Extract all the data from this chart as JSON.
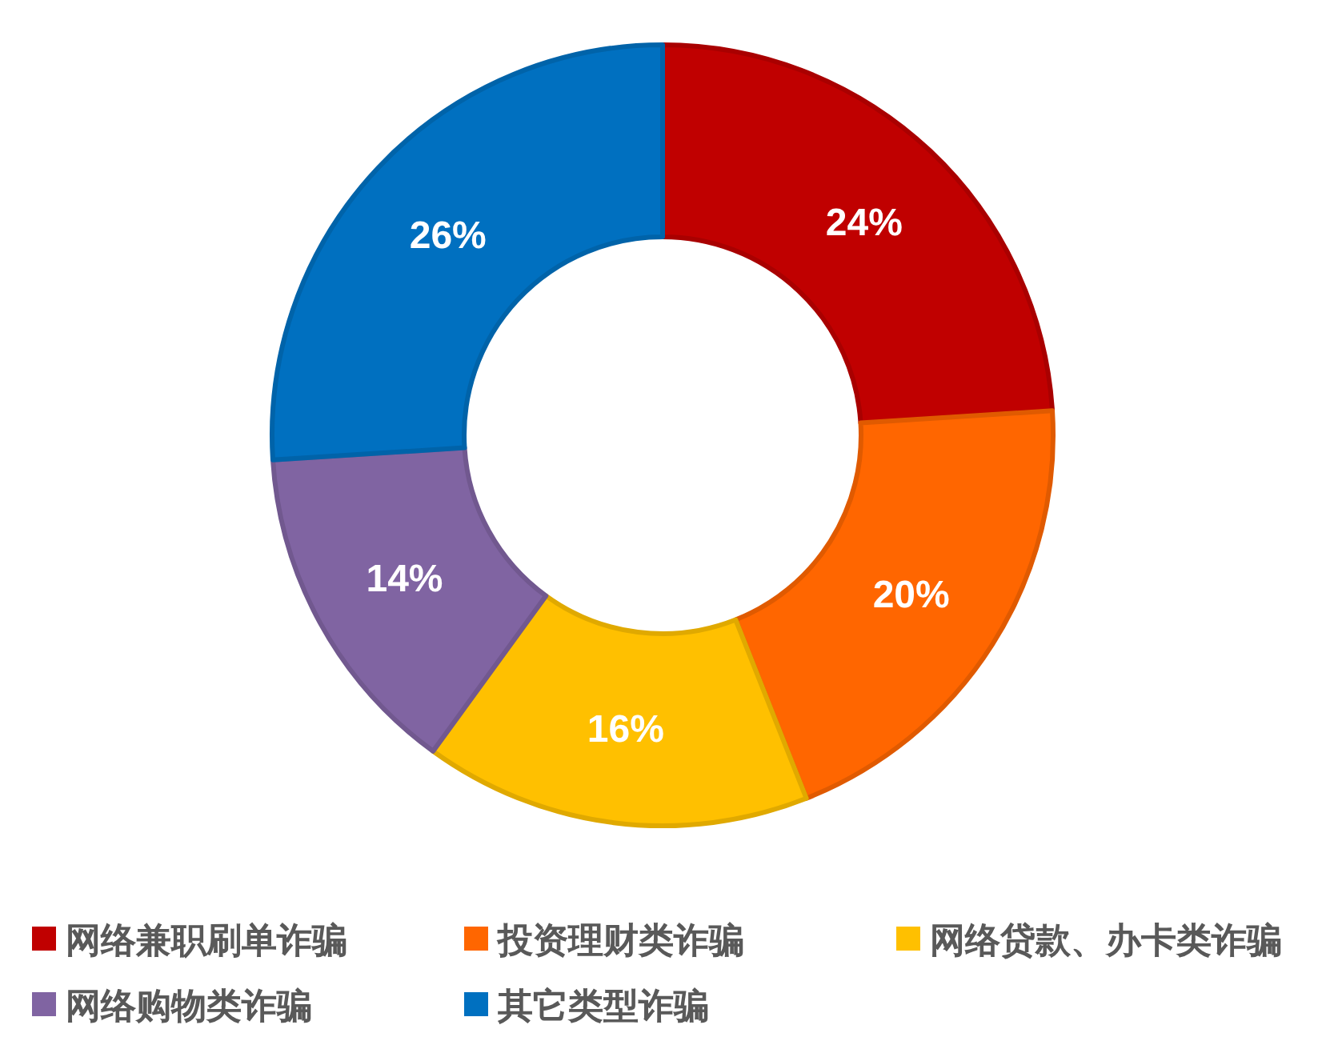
{
  "chart_data": {
    "type": "donut",
    "categories": [
      "网络兼职刷单诈骗",
      "投资理财类诈骗",
      "网络贷款、办卡类诈骗",
      "网络购物类诈骗",
      "其它类型诈骗"
    ],
    "values": [
      24,
      20,
      16,
      14,
      26
    ],
    "colors": [
      "#c00000",
      "#ff6600",
      "#ffc000",
      "#8064a2",
      "#0070c0"
    ],
    "value_labels": [
      "24%",
      "20%",
      "16%",
      "14%",
      "26%"
    ],
    "legend": "bottom"
  }
}
